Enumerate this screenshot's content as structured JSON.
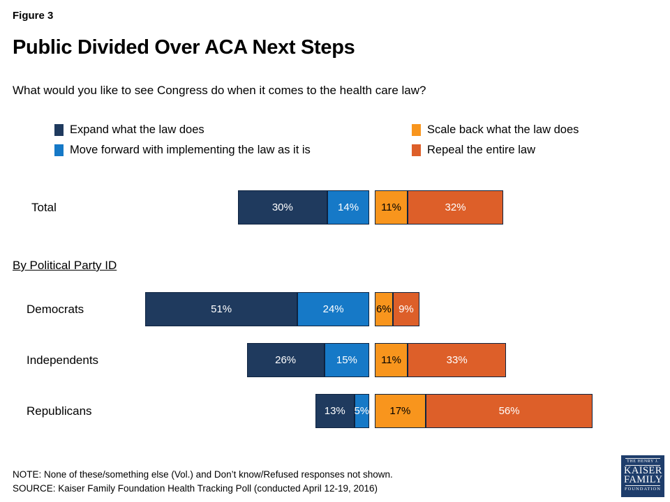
{
  "figure_label": "Figure 3",
  "title": "Public Divided Over ACA Next Steps",
  "question": "What would you like to see Congress do when it comes to the health care law?",
  "section_label": "By Political Party ID",
  "note": "NOTE: None of these/something else (Vol.) and Don’t know/Refused responses not shown.",
  "source": "SOURCE: Kaiser Family Foundation Health Tracking Poll (conducted April 12-19, 2016)",
  "logo": {
    "line1": "THE HENRY J.",
    "line2": "KAISER",
    "line3": "FAMILY",
    "line4": "FOUNDATION",
    "background": "#1e3d6b"
  },
  "colors": {
    "navy": "#1f3a5e",
    "blue": "#1679c7",
    "orange": "#f8951d",
    "dark_orange": "#dd5f29",
    "segment_border": "#0e2340",
    "text": "#000000"
  },
  "chart_data": {
    "type": "bar",
    "variant": "horizontal-stacked-diverging",
    "title": "Public Divided Over ACA Next Steps",
    "question": "What would you like to see Congress do when it comes to the health care law?",
    "categories": [
      "Total",
      "Democrats",
      "Independents",
      "Republicans"
    ],
    "series": [
      {
        "name": "Expand what the law does",
        "color": "#1f3a5e",
        "label_color": "#ffffff",
        "values": [
          30,
          51,
          26,
          13
        ]
      },
      {
        "name": "Move forward with implementing the law as it is",
        "color": "#1679c7",
        "label_color": "#ffffff",
        "values": [
          14,
          24,
          15,
          5
        ]
      },
      {
        "name": "Scale back what the law does",
        "color": "#f8951d",
        "label_color": "#000000",
        "values": [
          11,
          6,
          11,
          17
        ]
      },
      {
        "name": "Repeal the entire law",
        "color": "#dd5f29",
        "label_color": "#ffffff",
        "values": [
          32,
          9,
          33,
          56
        ]
      }
    ],
    "value_format": "percent",
    "legend_position": "top-two-columns",
    "axis": "hidden",
    "center_split_between": [
      "Move forward with implementing the law as it is",
      "Scale back what the law does"
    ],
    "note": "NOTE: None of these/something else (Vol.) and Don’t know/Refused responses not shown.",
    "source": "SOURCE: Kaiser Family Foundation Health Tracking Poll (conducted April 12-19, 2016)"
  }
}
